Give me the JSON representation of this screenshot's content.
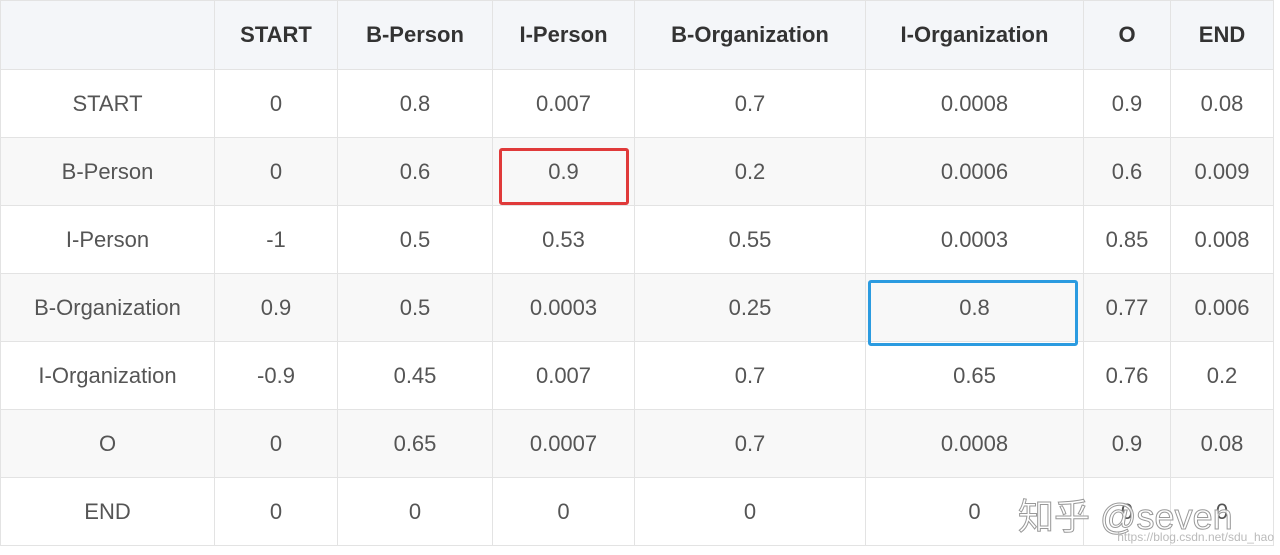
{
  "table": {
    "header": [
      "",
      "START",
      "B-Person",
      "I-Person",
      "B-Organization",
      "I-Organization",
      "O",
      "END"
    ],
    "rows": [
      [
        "START",
        "0",
        "0.8",
        "0.007",
        "0.7",
        "0.0008",
        "0.9",
        "0.08"
      ],
      [
        "B-Person",
        "0",
        "0.6",
        "0.9",
        "0.2",
        "0.0006",
        "0.6",
        "0.009"
      ],
      [
        "I-Person",
        "-1",
        "0.5",
        "0.53",
        "0.55",
        "0.0003",
        "0.85",
        "0.008"
      ],
      [
        "B-Organization",
        "0.9",
        "0.5",
        "0.0003",
        "0.25",
        "0.8",
        "0.77",
        "0.006"
      ],
      [
        "I-Organization",
        "-0.9",
        "0.45",
        "0.007",
        "0.7",
        "0.65",
        "0.76",
        "0.2"
      ],
      [
        "O",
        "0",
        "0.65",
        "0.0007",
        "0.7",
        "0.0008",
        "0.9",
        "0.08"
      ],
      [
        "END",
        "0",
        "0",
        "0",
        "0",
        "0",
        "0",
        "0"
      ]
    ]
  },
  "watermark": {
    "brand": "知乎 @seven",
    "url": "https://blog.csdn.net/sdu_hao"
  }
}
